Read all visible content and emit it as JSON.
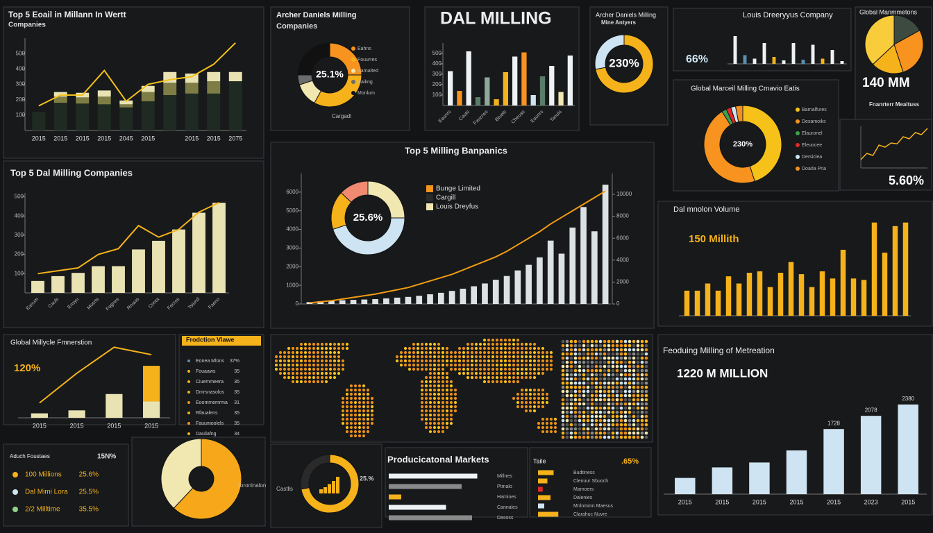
{
  "chart_data": [
    {
      "type": "bar",
      "title": "Top 5 Eoail in Millann In Wertt",
      "subtitle": "Companies",
      "categories": [
        "2015",
        "2015",
        "2015",
        "2015",
        "2045",
        "2015",
        null,
        "2015",
        "2015",
        "2075"
      ],
      "stacked": true,
      "series": [
        {
          "color": "#1f2b22",
          "values": [
            120,
            180,
            175,
            170,
            150,
            190,
            230,
            240,
            240,
            320
          ]
        },
        {
          "color": "#7d7d45",
          "values": [
            0,
            40,
            40,
            50,
            20,
            60,
            80,
            70,
            80,
            0
          ]
        },
        {
          "color": "#e9e3b4",
          "values": [
            0,
            30,
            30,
            40,
            25,
            40,
            70,
            60,
            60,
            60
          ]
        }
      ],
      "line": {
        "color": "#f6c21a",
        "values": [
          160,
          230,
          230,
          390,
          190,
          300,
          330,
          350,
          430,
          570
        ]
      },
      "ylim": [
        0,
        600
      ],
      "yticks": [
        100,
        200,
        300,
        400,
        500
      ]
    },
    {
      "type": "donut",
      "title": "Archer Daniels Milling",
      "subtitle": "Companies",
      "center": "25.1%",
      "values": [
        25,
        33,
        12,
        5,
        25
      ],
      "colors": [
        "#f7931e",
        "#f6b21a",
        "#f1e7b0",
        "#6b6b6b",
        "#111111"
      ],
      "labels": [
        "Eahns",
        "Fouurres",
        "Sarnalted",
        "Uaikng",
        "Monlum"
      ],
      "caption": "Cargadl"
    },
    {
      "type": "bar",
      "title": "DAL MILLING",
      "categories": [
        "Eaunrs",
        null,
        "Cauts",
        null,
        "Faucrws",
        null,
        "Btuels",
        null,
        "Cheuas",
        null,
        "Eaunrs",
        null,
        "Tanuls",
        null
      ],
      "values": [
        330,
        140,
        520,
        80,
        270,
        60,
        320,
        470,
        510,
        100,
        280,
        380,
        130,
        480
      ],
      "colors": [
        "#eef2f4",
        "#f7931e",
        "#eef2f4",
        "#5a7d6a",
        "#8fa89a",
        "#f6b21a",
        "#f6b21a",
        "#eef2f4",
        "#f7931e",
        "#cfe4f2",
        "#5a7d6a",
        "#eef2f4",
        "#f1e7b0",
        "#eef2f4"
      ],
      "ylim": [
        0,
        600
      ],
      "yticks": [
        100,
        200,
        300,
        400,
        500
      ]
    },
    {
      "type": "donut",
      "title": "Archer Daniels Milling",
      "subtitle": "Mine Antyers",
      "center": "230%",
      "values": [
        72,
        28
      ],
      "colors": [
        "#f6b21a",
        "#cfe4f2"
      ]
    },
    {
      "type": "bar",
      "title": "Louis Dreeryyus Company",
      "kpi": "66%",
      "kpi_color": "#cfe4f2",
      "values": [
        80,
        25,
        15,
        60,
        20,
        10,
        60,
        12,
        55,
        15,
        40,
        8
      ],
      "colors": [
        "#eef2f4",
        "#5a8fb0",
        "#eef2f4",
        "#eef2f4",
        "#f6b21a",
        "#eef2f4",
        "#eef2f4",
        "#5a8fb0",
        "#eef2f4",
        "#f6b21a",
        "#eef2f4",
        "#eef2f4"
      ],
      "ylim": [
        0,
        100
      ]
    },
    {
      "type": "donut",
      "title": "Global Manmmetons",
      "values": [
        17,
        28,
        18,
        37
      ],
      "colors": [
        "#3d4a40",
        "#f7931e",
        "#f6b21a",
        "#f8cc3a"
      ],
      "kpi": "140 MM",
      "kpi_color": "#ffffff",
      "subtitle": "Fnanrterr Mealtuss"
    },
    {
      "type": "donut",
      "title": "Global Marceil Milling Cmavio Eatis",
      "center": "230%",
      "values": [
        45,
        46,
        2,
        2,
        2,
        3
      ],
      "colors": [
        "#f6c21a",
        "#f7931e",
        "#3aa24a",
        "#e02828",
        "#cfe4f2",
        "#f09020"
      ],
      "labels": [
        "Barnalfures",
        "Desamoiks",
        "Elauronel",
        "Eleuocee",
        "Dersiclea",
        "Doarla Pria"
      ]
    },
    {
      "type": "line",
      "values": [
        20,
        35,
        30,
        55,
        50,
        60,
        58,
        75,
        70,
        85,
        80,
        95
      ],
      "color": "#f6b21a",
      "ylim": [
        0,
        100
      ],
      "kpi": "5.60%",
      "kpi_color": "#ffffff"
    },
    {
      "type": "bar",
      "title": "Top 5 Dal Milling Companies",
      "categories": [
        "Eanum",
        "Cauls",
        "Ensyu",
        "Mucrts",
        "Fagnes",
        "Rnaws",
        "Conta",
        "Fecros",
        "Tsiund",
        "Faeno"
      ],
      "values": [
        62,
        87,
        104,
        139,
        139,
        226,
        271,
        330,
        417,
        469
      ],
      "color": "#e9e3b4",
      "line": {
        "color": "#f6b21a",
        "values": [
          100,
          115,
          130,
          200,
          230,
          350,
          290,
          330,
          420,
          470
        ]
      },
      "ylim": [
        0,
        520
      ],
      "yticks": [
        100,
        200,
        300,
        400,
        500
      ]
    },
    {
      "type": "bar",
      "title": "Top 5 Milling Banpanics",
      "center": "25.6%",
      "donut": {
        "values": [
          25,
          45,
          17,
          13
        ],
        "colors": [
          "#f1e7b0",
          "#cfe4f2",
          "#f6b21a",
          "#f08a70"
        ]
      },
      "legend": [
        {
          "name": "Bunge Limited",
          "color": "#f7931e"
        },
        {
          "name": "Cargill",
          "color": "#2a2a2a"
        },
        {
          "name": "Louis Dreyfus",
          "color": "#f1e7b0"
        }
      ],
      "values": [
        100,
        150,
        180,
        200,
        220,
        240,
        260,
        300,
        340,
        380,
        440,
        520,
        600,
        700,
        820,
        950,
        1100,
        1300,
        1500,
        1800,
        2100,
        2500,
        3400,
        2700,
        4100,
        5200,
        3900,
        6400
      ],
      "color": "#eef2f4",
      "line": {
        "color": "#f39c12",
        "axis": "y2",
        "values": [
          100,
          200,
          300,
          450,
          600,
          750,
          900,
          1100,
          1300,
          1500,
          1800,
          2100,
          2400,
          2700,
          3100,
          3500,
          3900,
          4300,
          4800,
          5400,
          6000,
          6600,
          7300,
          7900,
          8500,
          9100,
          9700,
          10300
        ]
      },
      "ylim": [
        0,
        7000
      ],
      "yticks": [
        0,
        1000,
        2000,
        3000,
        4000,
        5000,
        6000
      ],
      "y2lim": [
        0,
        11900
      ],
      "y2ticks": [
        0,
        2000,
        4000,
        6000,
        8000,
        10000
      ]
    },
    {
      "type": "bar",
      "title": "Dal mnolon Volume",
      "kpi": "150 Millith",
      "kpi_color": "#f6b21a",
      "color": "#f6b21a",
      "values": [
        35,
        35,
        45,
        35,
        55,
        45,
        60,
        62,
        40,
        60,
        75,
        58,
        40,
        62,
        52,
        92,
        52,
        50,
        130,
        88,
        125,
        130
      ],
      "ylim": [
        0,
        150
      ]
    },
    {
      "type": "bar",
      "title": "Global Millycle Fmnerstion",
      "kpi": "120%",
      "kpi_color": "#f6b21a",
      "categories": [
        "2015",
        "2015",
        "2015",
        "2015"
      ],
      "stacked": true,
      "series": [
        {
          "color": "#e9e3b4",
          "values": [
            6,
            10,
            32,
            22
          ]
        },
        {
          "color": "#f6b21a",
          "values": [
            0,
            0,
            0,
            48
          ]
        }
      ],
      "line": {
        "color": "#f6b21a",
        "values": [
          20,
          60,
          95,
          85
        ]
      },
      "ylim": [
        0,
        100
      ]
    },
    {
      "type": "list",
      "title": "Frodction Vlawe",
      "rows": [
        [
          "Eonea Mlons",
          "37%"
        ],
        [
          "Fouaaws",
          "35"
        ],
        [
          "Ciuemmeera",
          "35"
        ],
        [
          "Dmrsnasolos",
          "35"
        ],
        [
          "Eoommemrma",
          "31"
        ],
        [
          "Rfaualens",
          "35"
        ],
        [
          "Fauumoolels",
          "35"
        ],
        [
          "Dauliafng",
          "34"
        ]
      ],
      "colors": [
        "#5a8fb0",
        "#f6b21a",
        "#f6b21a",
        "#f6b21a",
        "#f7931e",
        "#f6b21a",
        "#f7931e",
        "#f6b21a"
      ]
    },
    {
      "type": "bar",
      "title": "Feoduing Milling of Metreation",
      "kpi": "1220 M MILLION",
      "kpi_color": "#ffffff",
      "categories": [
        "2015",
        "2015",
        "2015",
        "2015",
        "2015",
        "2023",
        "2015"
      ],
      "values": [
        430,
        710,
        840,
        1160,
        1728,
        2078,
        2380
      ],
      "value_labels": [
        null,
        null,
        null,
        null,
        "1728",
        "2078",
        "2380"
      ],
      "color": "#cfe4f2",
      "ylim": [
        0,
        2800
      ]
    },
    {
      "type": "list",
      "title": "Aduch Foustaes",
      "kpi": "15N%",
      "kpi_color": "#dddddd",
      "rows": [
        [
          "100 Millions",
          "25.6%"
        ],
        [
          "Dal Mimi Lora",
          "25.5%"
        ],
        [
          "2/2 Milltime",
          "35.5%"
        ]
      ],
      "colors": [
        "#f6b21a",
        "#cfe4f2",
        "#8fd18a"
      ]
    },
    {
      "type": "donut",
      "values": [
        62,
        38
      ],
      "colors": [
        "#f6a81a",
        "#f1e7b0"
      ],
      "caption": "Toroninalon"
    },
    {
      "type": "donut",
      "values": [
        72,
        28
      ],
      "colors": [
        "#f6b21a",
        "#2a2a2a"
      ],
      "caption": "Castlls",
      "kpi": "25.%",
      "kpi_color": "#cccccc",
      "mini": {
        "values": [
          20,
          30,
          45,
          60,
          80
        ],
        "color": "#f6b21a"
      }
    },
    {
      "type": "hbar",
      "title": "Producicatonal Markets",
      "labels": [
        "Millnes",
        "Ptmalo",
        "Hamines",
        "Cannales",
        "Dasoss"
      ],
      "values": [
        85,
        70,
        12,
        55,
        80
      ],
      "colors": [
        "#eef2f4",
        "#8a8a8a",
        "#f6b21a",
        "#eef2f4",
        "#8a8a8a"
      ],
      "xlim": [
        0,
        100
      ]
    },
    {
      "type": "hbar",
      "title": "Taile",
      "kpi": ".65%",
      "kpi_color": "#f6b21a",
      "labels": [
        "Budtiness",
        "Clenuur Sbuoch",
        "Mamoers",
        "Dalenies",
        "Mnlnmmn Maesus",
        "Clarahuc Nuvre"
      ],
      "values": [
        50,
        30,
        15,
        40,
        20,
        65
      ],
      "colors": [
        "#f6b21a",
        "#f6b21a",
        "#e02828",
        "#f6b21a",
        "#cfe4f2",
        "#f6b21a"
      ],
      "xlim": [
        0,
        100
      ]
    }
  ]
}
